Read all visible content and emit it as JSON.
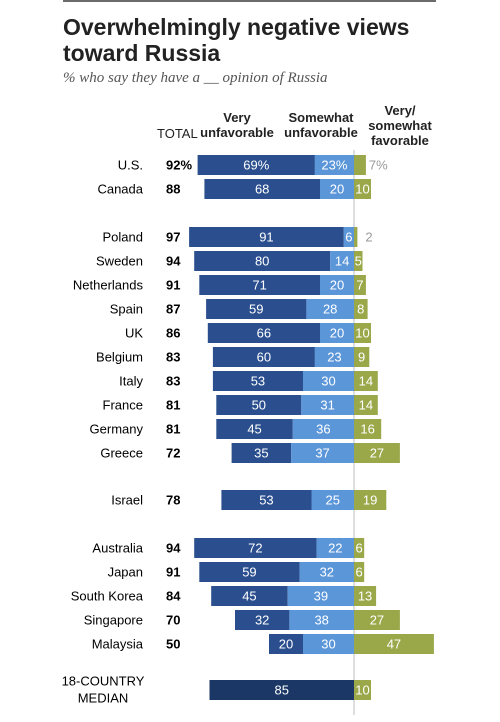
{
  "title": "Overwhelmingly negative views toward Russia",
  "subtitle": "% who say they have a __ opinion of Russia",
  "headers": {
    "total": "TOTAL",
    "very_unfavorable": "Very unfavorable",
    "somewhat_unfavorable": "Somewhat unfavorable",
    "favorable": "Very/ somewhat favorable"
  },
  "colors": {
    "very_unfavorable": "#2b4f8e",
    "somewhat_unfavorable": "#5b96d9",
    "favorable": "#9aa84a",
    "median": "#1a3766"
  },
  "chart_data": {
    "type": "bar",
    "orientation": "horizontal-diverging",
    "categories": [
      "U.S.",
      "Canada",
      "Poland",
      "Sweden",
      "Netherlands",
      "Spain",
      "UK",
      "Belgium",
      "Italy",
      "France",
      "Germany",
      "Greece",
      "Israel",
      "Australia",
      "Japan",
      "South Korea",
      "Singapore",
      "Malaysia",
      "18-COUNTRY MEDIAN"
    ],
    "total": [
      92,
      88,
      97,
      94,
      91,
      87,
      86,
      83,
      83,
      81,
      81,
      72,
      78,
      94,
      91,
      84,
      70,
      50,
      null
    ],
    "series": [
      {
        "name": "Very unfavorable",
        "values": [
          69,
          68,
          91,
          80,
          71,
          59,
          66,
          60,
          53,
          50,
          45,
          35,
          53,
          72,
          59,
          45,
          32,
          20,
          85
        ]
      },
      {
        "name": "Somewhat unfavorable",
        "values": [
          23,
          20,
          6,
          14,
          20,
          28,
          20,
          23,
          30,
          31,
          36,
          37,
          25,
          22,
          32,
          39,
          38,
          30,
          null
        ]
      },
      {
        "name": "Very/ somewhat favorable",
        "values": [
          7,
          10,
          2,
          5,
          7,
          8,
          10,
          9,
          14,
          14,
          16,
          27,
          19,
          6,
          6,
          13,
          27,
          47,
          10
        ]
      }
    ],
    "labels": {
      "total": [
        "92%",
        "88",
        "97",
        "94",
        "91",
        "87",
        "86",
        "83",
        "83",
        "81",
        "81",
        "72",
        "78",
        "94",
        "91",
        "84",
        "70",
        "50",
        ""
      ],
      "very": [
        "69%",
        "68",
        "91",
        "80",
        "71",
        "59",
        "66",
        "60",
        "53",
        "50",
        "45",
        "35",
        "53",
        "72",
        "59",
        "45",
        "32",
        "20",
        "85"
      ],
      "somewhat": [
        "23%",
        "20",
        "6",
        "14",
        "20",
        "28",
        "20",
        "23",
        "30",
        "31",
        "36",
        "37",
        "25",
        "22",
        "32",
        "39",
        "38",
        "30",
        ""
      ],
      "favorable": [
        "7%",
        "10",
        "2",
        "5",
        "7",
        "8",
        "10",
        "9",
        "14",
        "14",
        "16",
        "27",
        "19",
        "6",
        "6",
        "13",
        "27",
        "47",
        "10"
      ]
    },
    "xlabel": "",
    "ylabel": "",
    "grid": false,
    "legend": "column headers at top"
  }
}
